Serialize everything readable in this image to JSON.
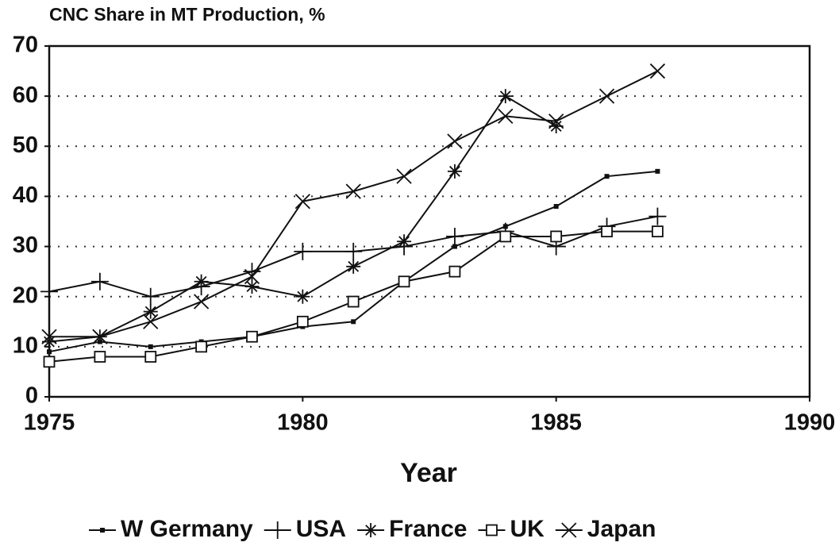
{
  "chart_data": {
    "type": "line",
    "title": "CNC Share in MT Production, %",
    "xlabel": "Year",
    "x": [
      1975,
      1976,
      1977,
      1978,
      1979,
      1980,
      1981,
      1982,
      1983,
      1984,
      1985,
      1986,
      1987
    ],
    "xlim": [
      1975,
      1990
    ],
    "xticks": [
      1975,
      1980,
      1985,
      1990
    ],
    "ylim": [
      0,
      70
    ],
    "yticks": [
      0,
      10,
      20,
      30,
      40,
      50,
      60,
      70
    ],
    "grid": true,
    "legend": "bottom",
    "series": [
      {
        "name": "W Germany",
        "color": "#111111",
        "marker": "dot",
        "values": [
          9,
          11,
          10,
          11,
          12,
          14,
          15,
          23,
          30,
          34,
          38,
          44,
          45
        ]
      },
      {
        "name": "USA",
        "color": "#111111",
        "marker": "plus",
        "values": [
          21,
          23,
          20,
          22,
          25,
          29,
          29,
          30,
          32,
          33,
          30,
          34,
          36
        ]
      },
      {
        "name": "France",
        "color": "#111111",
        "marker": "asterisk",
        "values": [
          11,
          12,
          17,
          23,
          22,
          20,
          26,
          31,
          45,
          60,
          54,
          null,
          null
        ]
      },
      {
        "name": "UK",
        "color": "#111111",
        "marker": "square",
        "values": [
          7,
          8,
          8,
          10,
          12,
          15,
          19,
          23,
          25,
          32,
          32,
          33,
          33
        ]
      },
      {
        "name": "Japan",
        "color": "#111111",
        "marker": "cross",
        "values": [
          12,
          12,
          15,
          19,
          24,
          39,
          41,
          44,
          51,
          56,
          55,
          60,
          65
        ]
      }
    ]
  }
}
